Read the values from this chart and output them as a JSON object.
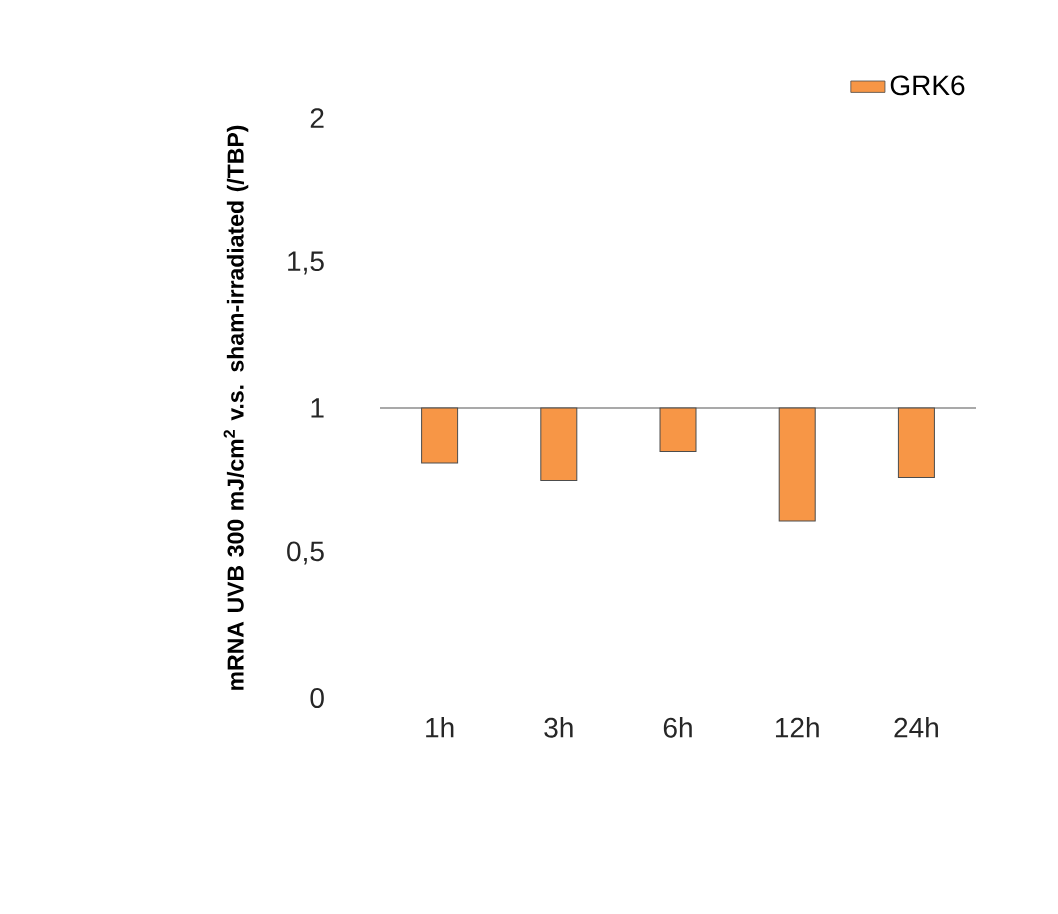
{
  "chart_data": {
    "type": "bar",
    "ylabel": "mRNA UVB 300 mJ/cm$^{2}$ v.s. sham-irradiated (/TBP)",
    "categories": [
      "1h",
      "3h",
      "6h",
      "12h",
      "24h"
    ],
    "series": [
      {
        "name": "GRK6",
        "color": "#f79646",
        "base": [
          0.81,
          0.75,
          0.85,
          0.61,
          0.76
        ],
        "values": [
          0.19,
          0.25,
          0.15,
          0.39,
          0.24
        ]
      }
    ],
    "ylim": [
      0,
      2
    ],
    "yticks": [
      0,
      {
        "value": 0.5,
        "label": "0,5"
      },
      1,
      {
        "value": 1.5,
        "label": "1,5"
      },
      2
    ],
    "legend": "top right"
  }
}
